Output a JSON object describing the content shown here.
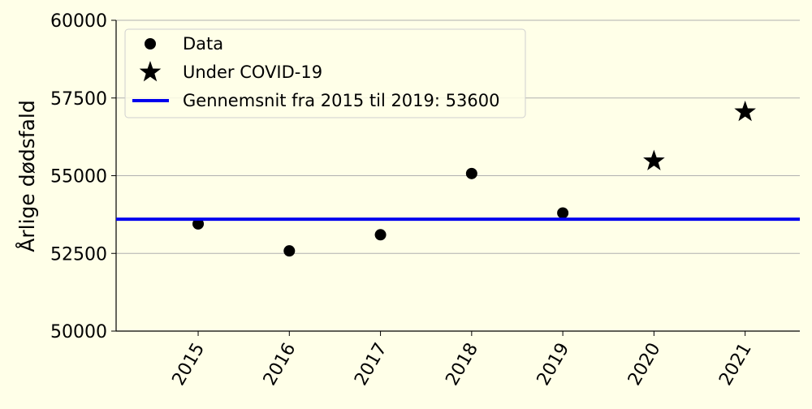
{
  "chart_data": {
    "type": "scatter",
    "ylabel": "Årlige dødsfald",
    "xlabel": "",
    "ylim": [
      50000,
      60000
    ],
    "xlim": [
      2014.1,
      2021.6
    ],
    "yticks": [
      50000,
      52500,
      55000,
      57500,
      60000
    ],
    "xticks": [
      "2015",
      "2016",
      "2017",
      "2018",
      "2019",
      "2020",
      "2021"
    ],
    "grid": "horizontal",
    "legend_position": "top-left",
    "series": [
      {
        "name": "Data",
        "marker": "circle",
        "color": "#000000",
        "points": [
          {
            "x": 2015,
            "y": 53450
          },
          {
            "x": 2016,
            "y": 52580
          },
          {
            "x": 2017,
            "y": 53100
          },
          {
            "x": 2018,
            "y": 55070
          },
          {
            "x": 2019,
            "y": 53800
          }
        ]
      },
      {
        "name": "Under COVID-19",
        "marker": "star",
        "color": "#000000",
        "points": [
          {
            "x": 2020,
            "y": 55470
          },
          {
            "x": 2021,
            "y": 57050
          }
        ]
      },
      {
        "name": "Gennemsnit fra 2015 til 2019: 53600",
        "type": "hline",
        "color": "#0000ee",
        "y": 53600
      }
    ]
  }
}
